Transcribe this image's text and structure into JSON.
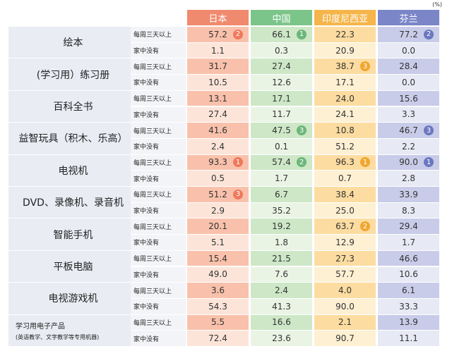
{
  "unit": "(%)",
  "columns": [
    "日本",
    "中国",
    "印度尼西亚",
    "芬兰"
  ],
  "sub_labels": [
    "每周三天以上",
    "家中没有"
  ],
  "rows": [
    {
      "label": "绘本",
      "values": [
        [
          "57.2",
          "66.1",
          "22.3",
          "77.2"
        ],
        [
          "1.1",
          "0.3",
          "20.9",
          "0.0"
        ]
      ],
      "ranks": [
        2,
        1,
        null,
        2
      ]
    },
    {
      "label": "(学习用）练习册",
      "values": [
        [
          "31.7",
          "27.4",
          "38.7",
          "28.4"
        ],
        [
          "10.5",
          "12.6",
          "17.1",
          "0.0"
        ]
      ],
      "ranks": [
        null,
        null,
        3,
        null
      ]
    },
    {
      "label": "百科全书",
      "values": [
        [
          "13.1",
          "17.1",
          "24.0",
          "15.6"
        ],
        [
          "27.4",
          "11.7",
          "24.1",
          "3.3"
        ]
      ]
    },
    {
      "label": "益智玩具（积木、乐高）",
      "values": [
        [
          "41.6",
          "47.5",
          "10.8",
          "46.7"
        ],
        [
          "2.4",
          "0.1",
          "51.2",
          "2.2"
        ]
      ],
      "ranks": [
        null,
        3,
        null,
        3
      ]
    },
    {
      "label": "电视机",
      "values": [
        [
          "93.3",
          "57.4",
          "96.3",
          "90.0"
        ],
        [
          "0.5",
          "1.7",
          "0.7",
          "2.8"
        ]
      ],
      "ranks": [
        1,
        2,
        1,
        1
      ]
    },
    {
      "label": "DVD、录像机、录音机",
      "values": [
        [
          "51.2",
          "6.7",
          "38.4",
          "33.9"
        ],
        [
          "2.9",
          "35.2",
          "25.0",
          "8.3"
        ]
      ],
      "ranks": [
        3,
        null,
        null,
        null
      ]
    },
    {
      "label": "智能手机",
      "values": [
        [
          "20.1",
          "19.2",
          "63.7",
          "29.4"
        ],
        [
          "5.1",
          "1.8",
          "12.9",
          "1.7"
        ]
      ],
      "ranks": [
        null,
        null,
        2,
        null
      ]
    },
    {
      "label": "平板电脑",
      "values": [
        [
          "15.4",
          "21.5",
          "27.3",
          "46.6"
        ],
        [
          "49.0",
          "7.6",
          "57.7",
          "10.6"
        ]
      ]
    },
    {
      "label": "电视游戏机",
      "values": [
        [
          "3.6",
          "2.4",
          "4.0",
          "6.1"
        ],
        [
          "54.3",
          "41.3",
          "90.0",
          "33.3"
        ]
      ]
    },
    {
      "label": "学习用电子产品",
      "note": "(英语教学、文字教学等专用机器)",
      "values": [
        [
          "5.5",
          "16.6",
          "2.1",
          "13.9"
        ],
        [
          "72.4",
          "23.6",
          "90.7",
          "11.1"
        ]
      ]
    }
  ]
}
